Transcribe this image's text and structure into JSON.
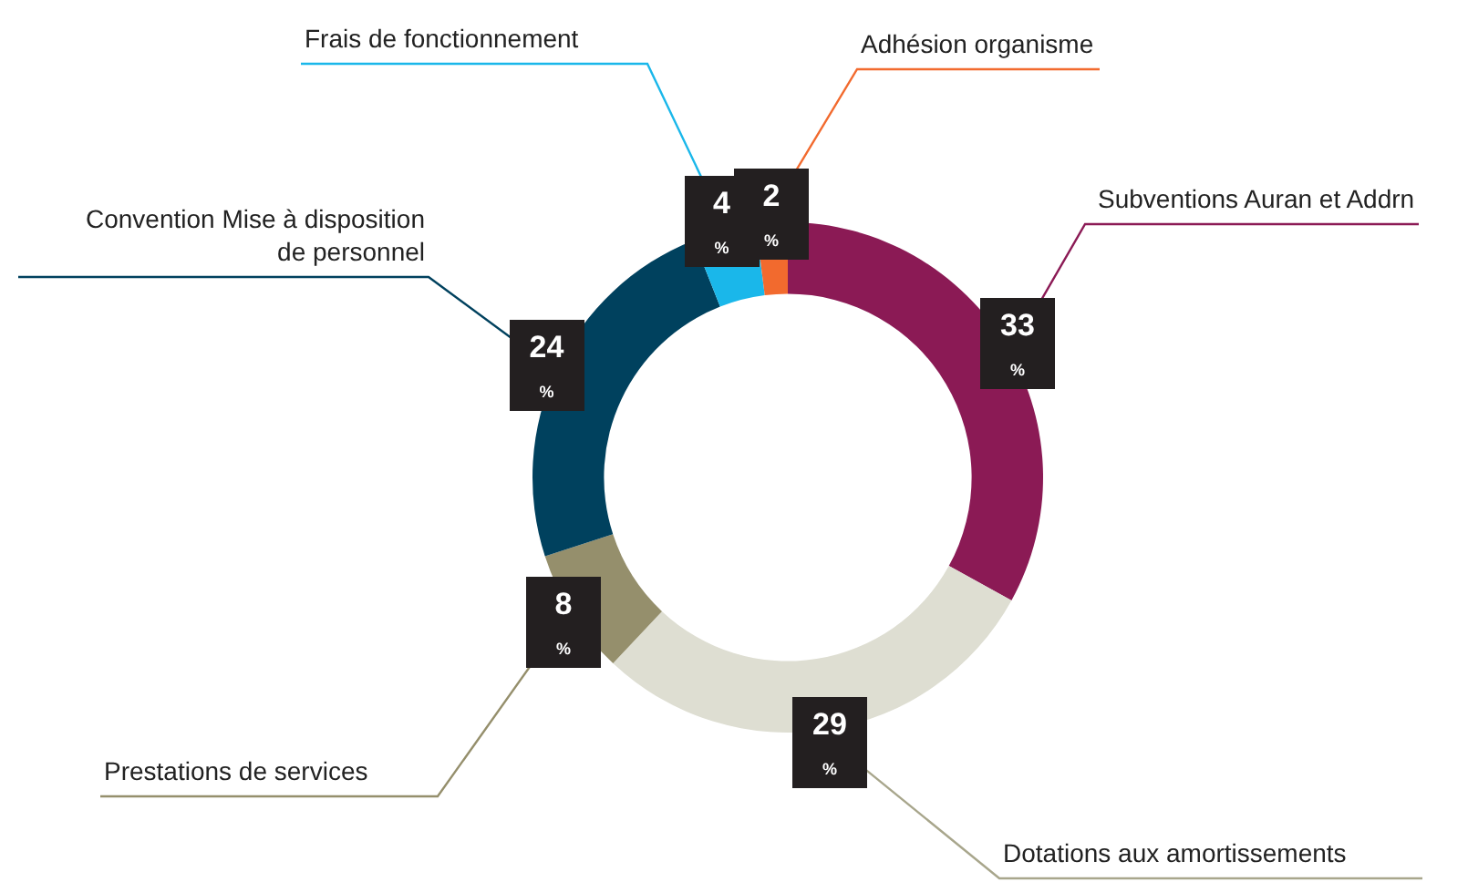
{
  "chart_data": {
    "type": "donut",
    "categories": [
      "Subventions Auran et Addrn",
      "Dotations aux amortissements",
      "Prestations de services",
      "Convention Mise à disposition\nde personnel",
      "Frais de fonctionnement",
      "Adhésion organisme"
    ],
    "values": [
      33,
      29,
      8,
      24,
      4,
      2
    ],
    "colors": [
      "#8b1a55",
      "#deded2",
      "#958f6c",
      "#00415e",
      "#1ab7ea",
      "#f26a2e"
    ],
    "value_labels": [
      "33 %",
      "29 %",
      "8 %",
      "24 %",
      "4 %",
      "2 %"
    ],
    "legend": false
  }
}
